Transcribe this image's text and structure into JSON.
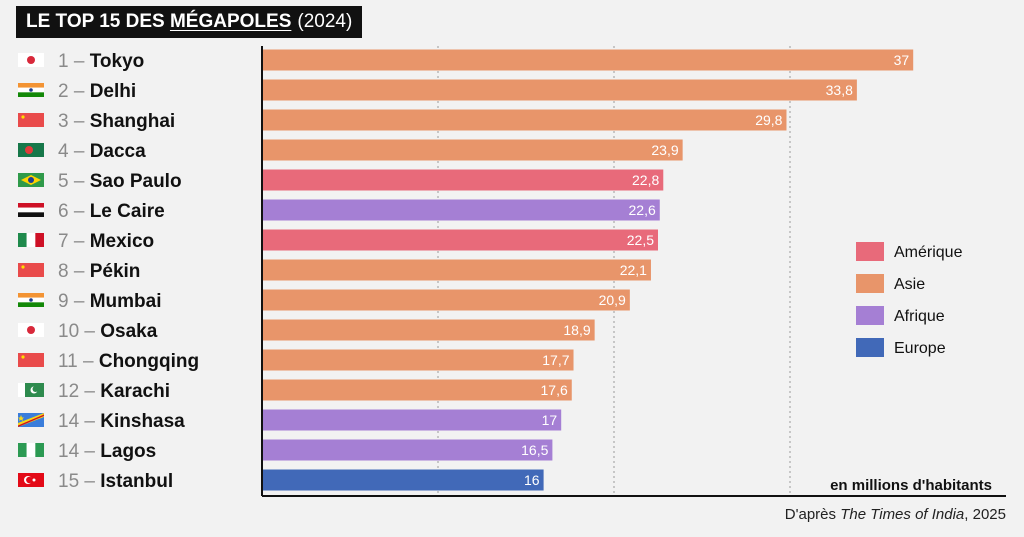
{
  "title": {
    "prefix": "LE TOP 15 DES",
    "highlight": "MÉGAPOLES",
    "year": "(2024)"
  },
  "colors": {
    "amerique": "#e86a7a",
    "asie": "#e8956a",
    "afrique": "#a57fd4",
    "europe": "#4169b8",
    "background": "#f2f2f2"
  },
  "legend": [
    {
      "label": "Amérique",
      "color": "#e86a7a"
    },
    {
      "label": "Asie",
      "color": "#e8956a"
    },
    {
      "label": "Afrique",
      "color": "#a57fd4"
    },
    {
      "label": "Europe",
      "color": "#4169b8"
    }
  ],
  "chart_data": {
    "type": "bar",
    "orientation": "horizontal",
    "title": "LE TOP 15 DES MÉGAPOLES (2024)",
    "xlabel": "en millions d'habitants",
    "xlim": [
      0,
      40
    ],
    "grid": true,
    "legend_position": "right",
    "categories": [
      {
        "rank": "1",
        "city": "Tokyo",
        "value": 37,
        "value_label": "37",
        "region": "Asie",
        "flag": "japan-flag-icon"
      },
      {
        "rank": "2",
        "city": "Delhi",
        "value": 33.8,
        "value_label": "33,8",
        "region": "Asie",
        "flag": "india-flag-icon"
      },
      {
        "rank": "3",
        "city": "Shanghai",
        "value": 29.8,
        "value_label": "29,8",
        "region": "Asie",
        "flag": "china-flag-icon"
      },
      {
        "rank": "4",
        "city": "Dacca",
        "value": 23.9,
        "value_label": "23,9",
        "region": "Asie",
        "flag": "bangladesh-flag-icon"
      },
      {
        "rank": "5",
        "city": "Sao Paulo",
        "value": 22.8,
        "value_label": "22,8",
        "region": "Amérique",
        "flag": "brazil-flag-icon"
      },
      {
        "rank": "6",
        "city": "Le Caire",
        "value": 22.6,
        "value_label": "22,6",
        "region": "Afrique",
        "flag": "egypt-flag-icon"
      },
      {
        "rank": "7",
        "city": "Mexico",
        "value": 22.5,
        "value_label": "22,5",
        "region": "Amérique",
        "flag": "mexico-flag-icon"
      },
      {
        "rank": "8",
        "city": "Pékin",
        "value": 22.1,
        "value_label": "22,1",
        "region": "Asie",
        "flag": "china-flag-icon"
      },
      {
        "rank": "9",
        "city": "Mumbai",
        "value": 20.9,
        "value_label": "20,9",
        "region": "Asie",
        "flag": "india-flag-icon"
      },
      {
        "rank": "10",
        "city": "Osaka",
        "value": 18.9,
        "value_label": "18,9",
        "region": "Asie",
        "flag": "japan-flag-icon"
      },
      {
        "rank": "11",
        "city": "Chongqing",
        "value": 17.7,
        "value_label": "17,7",
        "region": "Asie",
        "flag": "china-flag-icon"
      },
      {
        "rank": "12",
        "city": "Karachi",
        "value": 17.6,
        "value_label": "17,6",
        "region": "Asie",
        "flag": "pakistan-flag-icon"
      },
      {
        "rank": "14",
        "city": "Kinshasa",
        "value": 17,
        "value_label": "17",
        "region": "Afrique",
        "flag": "drc-flag-icon"
      },
      {
        "rank": "14",
        "city": "Lagos",
        "value": 16.5,
        "value_label": "16,5",
        "region": "Afrique",
        "flag": "nigeria-flag-icon"
      },
      {
        "rank": "15",
        "city": "Istanbul",
        "value": 16,
        "value_label": "16",
        "region": "Europe",
        "flag": "turkey-flag-icon"
      }
    ]
  },
  "source": {
    "prefix": "D'après ",
    "publication": "The Times of India",
    "suffix": ", 2025"
  }
}
